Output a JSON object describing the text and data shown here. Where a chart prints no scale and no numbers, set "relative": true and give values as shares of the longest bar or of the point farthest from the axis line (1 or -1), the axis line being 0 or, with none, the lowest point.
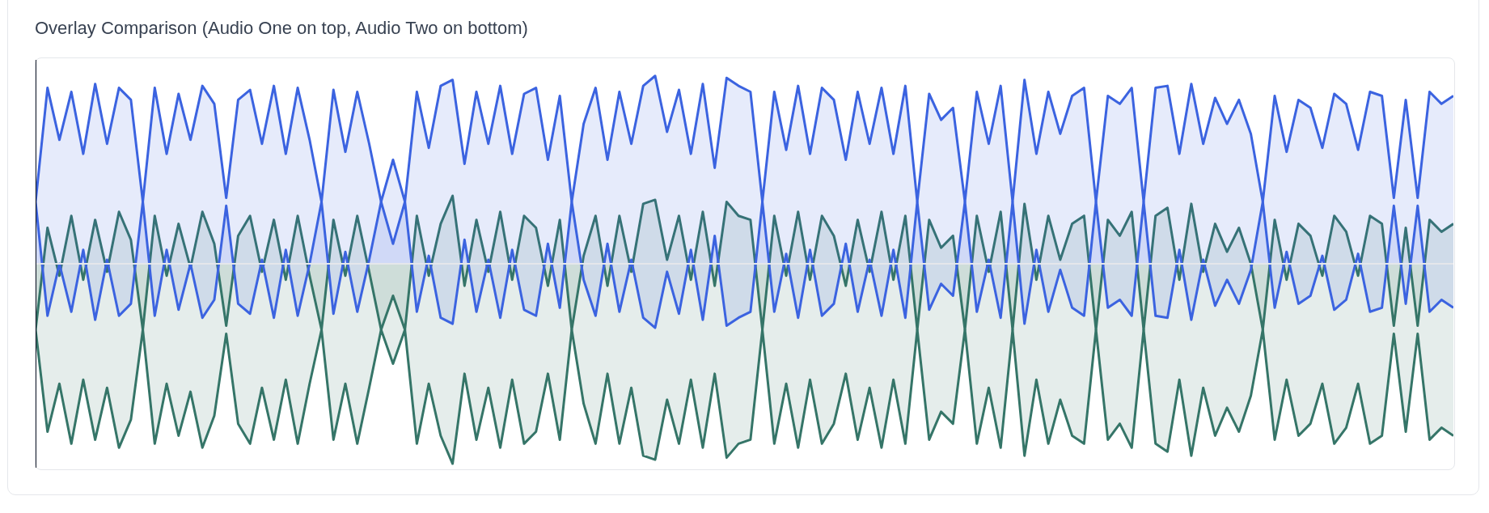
{
  "chart_data": {
    "type": "line",
    "title": "Overlay Comparison (Audio One on top, Audio Two on bottom)",
    "relative": true,
    "categories": [
      null,
      null,
      null,
      null,
      null,
      null,
      null,
      null,
      null,
      null,
      null,
      null,
      null,
      null,
      null,
      null,
      null,
      null,
      null,
      null,
      null,
      null,
      null,
      null,
      null,
      null,
      null,
      null,
      null,
      null,
      null,
      null,
      null,
      null,
      null,
      null,
      null,
      null,
      null,
      null,
      null,
      null,
      null,
      null,
      null,
      null,
      null,
      null,
      null,
      null,
      null,
      null,
      null,
      null,
      null,
      null,
      null,
      null,
      null,
      null,
      null,
      null,
      null,
      null,
      null,
      null,
      null,
      null,
      null,
      null,
      null,
      null,
      null,
      null,
      null,
      null,
      null,
      null,
      null,
      null,
      null,
      null,
      null,
      null,
      null,
      null,
      null,
      null,
      null,
      null,
      null,
      null,
      null,
      null,
      null,
      null,
      null,
      null,
      null,
      null,
      null,
      null,
      null,
      null,
      null,
      null,
      null,
      null,
      null,
      null,
      null,
      null,
      null,
      null,
      null,
      null,
      null,
      null,
      null,
      null
    ],
    "series": [
      {
        "type": "area",
        "color": "#3b63e0",
        "values": [
          0.31,
          0.88,
          0.62,
          0.86,
          0.55,
          0.9,
          0.6,
          0.88,
          0.82,
          0.31,
          0.88,
          0.55,
          0.85,
          0.62,
          0.89,
          0.8,
          0.33,
          0.82,
          0.87,
          0.6,
          0.89,
          0.55,
          0.88,
          0.62,
          0.31,
          0.87,
          0.56,
          0.86,
          0.6,
          0.31,
          0.52,
          0.31,
          0.86,
          0.58,
          0.89,
          0.92,
          0.5,
          0.86,
          0.6,
          0.89,
          0.55,
          0.85,
          0.88,
          0.52,
          0.84,
          0.31,
          0.7,
          0.88,
          0.52,
          0.86,
          0.6,
          0.89,
          0.94,
          0.66,
          0.87,
          0.55,
          0.9,
          0.48,
          0.93,
          0.89,
          0.86,
          0.31,
          0.86,
          0.57,
          0.89,
          0.55,
          0.88,
          0.82,
          0.52,
          0.86,
          0.6,
          0.88,
          0.55,
          0.89,
          0.31,
          0.85,
          0.72,
          0.78,
          0.31,
          0.86,
          0.6,
          0.89,
          0.31,
          0.92,
          0.55,
          0.86,
          0.65,
          0.84,
          0.88,
          0.31,
          0.84,
          0.8,
          0.88,
          0.31,
          0.88,
          0.89,
          0.55,
          0.9,
          0.6,
          0.83,
          0.7,
          0.82,
          0.65,
          0.31,
          0.84,
          0.56,
          0.82,
          0.78,
          0.58,
          0.85,
          0.8,
          0.57,
          0.86,
          0.84,
          0.33,
          0.82,
          0.33,
          0.86,
          0.8,
          0.84
        ]
      },
      {
        "type": "area",
        "color": "#3b63e0",
        "values": [
          0.31,
          -0.26,
          0,
          -0.24,
          0.07,
          -0.28,
          0.02,
          -0.26,
          -0.2,
          0.31,
          -0.26,
          0.07,
          -0.23,
          0,
          -0.27,
          -0.18,
          0.29,
          -0.2,
          -0.25,
          0.02,
          -0.27,
          0.07,
          -0.26,
          0,
          0.31,
          -0.25,
          0.06,
          -0.24,
          0.02,
          0.31,
          0.1,
          0.31,
          -0.24,
          0.04,
          -0.27,
          -0.3,
          0.12,
          -0.24,
          0.02,
          -0.27,
          0.07,
          -0.23,
          -0.26,
          0.1,
          -0.22,
          0.31,
          -0.08,
          -0.26,
          0.1,
          -0.24,
          0.02,
          -0.27,
          -0.32,
          -0.04,
          -0.25,
          0.07,
          -0.28,
          0.14,
          -0.31,
          -0.27,
          -0.24,
          0.31,
          -0.24,
          0.05,
          -0.27,
          0.07,
          -0.26,
          -0.2,
          0.1,
          -0.24,
          0.02,
          -0.26,
          0.07,
          -0.27,
          0.31,
          -0.23,
          -0.1,
          -0.16,
          0.31,
          -0.24,
          0.02,
          -0.27,
          0.31,
          -0.3,
          0.07,
          -0.24,
          -0.03,
          -0.22,
          -0.26,
          0.31,
          -0.22,
          -0.18,
          -0.26,
          0.31,
          -0.26,
          -0.27,
          0.07,
          -0.28,
          0.02,
          -0.21,
          -0.08,
          -0.2,
          -0.03,
          0.31,
          -0.22,
          0.06,
          -0.2,
          -0.16,
          0.04,
          -0.23,
          -0.18,
          0.05,
          -0.24,
          -0.22,
          0.29,
          -0.2,
          0.29,
          -0.24,
          -0.18,
          -0.22
        ]
      },
      {
        "type": "area",
        "color": "#357568",
        "values": [
          -0.33,
          0.18,
          -0.06,
          0.24,
          -0.08,
          0.22,
          -0.04,
          0.26,
          0.12,
          -0.33,
          0.24,
          -0.06,
          0.2,
          -0.02,
          0.26,
          0.1,
          -0.31,
          0.14,
          0.24,
          -0.04,
          0.22,
          -0.08,
          0.24,
          -0.06,
          -0.33,
          0.22,
          -0.06,
          0.24,
          -0.04,
          -0.33,
          -0.16,
          -0.33,
          0.24,
          -0.06,
          0.2,
          0.34,
          -0.11,
          0.22,
          -0.04,
          0.26,
          -0.08,
          0.24,
          0.18,
          -0.11,
          0.22,
          -0.33,
          0.04,
          0.24,
          -0.11,
          0.24,
          -0.04,
          0.3,
          0.32,
          0.02,
          0.24,
          -0.08,
          0.26,
          -0.11,
          0.31,
          0.24,
          0.22,
          -0.33,
          0.24,
          -0.06,
          0.26,
          -0.08,
          0.24,
          0.14,
          -0.11,
          0.22,
          -0.04,
          0.26,
          -0.08,
          0.24,
          -0.33,
          0.22,
          0.08,
          0.14,
          -0.33,
          0.24,
          -0.04,
          0.26,
          -0.33,
          0.3,
          -0.08,
          0.24,
          0.02,
          0.2,
          0.24,
          -0.33,
          0.22,
          0.14,
          0.26,
          -0.33,
          0.24,
          0.28,
          -0.08,
          0.3,
          -0.04,
          0.2,
          0.06,
          0.18,
          0,
          -0.33,
          0.22,
          -0.08,
          0.2,
          0.14,
          -0.06,
          0.24,
          0.16,
          -0.06,
          0.24,
          0.2,
          -0.31,
          0.18,
          -0.31,
          0.22,
          0.16,
          0.2
        ]
      },
      {
        "type": "area",
        "color": "#357568",
        "values": [
          -0.33,
          -0.84,
          -0.6,
          -0.9,
          -0.58,
          -0.88,
          -0.62,
          -0.92,
          -0.78,
          -0.33,
          -0.9,
          -0.6,
          -0.86,
          -0.64,
          -0.92,
          -0.76,
          -0.35,
          -0.8,
          -0.9,
          -0.62,
          -0.88,
          -0.58,
          -0.9,
          -0.6,
          -0.33,
          -0.88,
          -0.6,
          -0.9,
          -0.62,
          -0.33,
          -0.5,
          -0.33,
          -0.9,
          -0.6,
          -0.86,
          -1.0,
          -0.55,
          -0.88,
          -0.62,
          -0.92,
          -0.58,
          -0.9,
          -0.84,
          -0.55,
          -0.88,
          -0.33,
          -0.7,
          -0.9,
          -0.55,
          -0.9,
          -0.62,
          -0.96,
          -0.98,
          -0.68,
          -0.9,
          -0.58,
          -0.92,
          -0.55,
          -0.97,
          -0.9,
          -0.88,
          -0.33,
          -0.9,
          -0.6,
          -0.92,
          -0.58,
          -0.9,
          -0.8,
          -0.55,
          -0.88,
          -0.62,
          -0.92,
          -0.58,
          -0.9,
          -0.33,
          -0.88,
          -0.74,
          -0.8,
          -0.33,
          -0.9,
          -0.62,
          -0.92,
          -0.33,
          -0.96,
          -0.58,
          -0.9,
          -0.68,
          -0.86,
          -0.9,
          -0.33,
          -0.88,
          -0.8,
          -0.92,
          -0.33,
          -0.9,
          -0.94,
          -0.58,
          -0.96,
          -0.62,
          -0.86,
          -0.72,
          -0.84,
          -0.66,
          -0.33,
          -0.88,
          -0.58,
          -0.86,
          -0.8,
          -0.6,
          -0.9,
          -0.82,
          -0.6,
          -0.9,
          -0.86,
          -0.35,
          -0.84,
          -0.35,
          -0.88,
          -0.82,
          -0.86
        ]
      }
    ]
  }
}
